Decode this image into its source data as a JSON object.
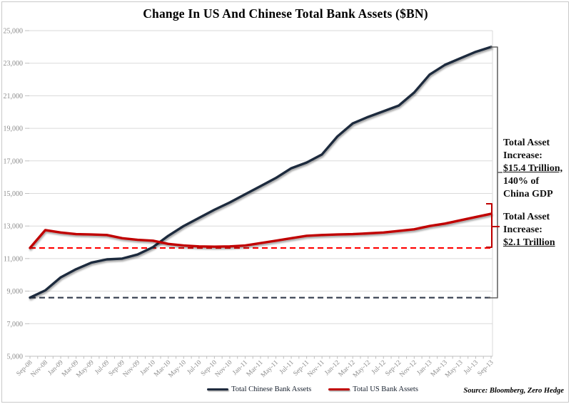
{
  "figure": {
    "source_note": "Source: Bloomberg, Zero Hedge"
  },
  "colors": {
    "gridline": "#dadada",
    "axis_tick": "#bfbfbf",
    "axis_label": "#8c8c8c",
    "title": "#000000",
    "chinese_line": "#1f2b3e",
    "us_line": "#c00000",
    "us_start_dashed": "#ff0000",
    "china_start_dashed": "#3d4656"
  },
  "chart_data": {
    "type": "line",
    "title": "Change In US And Chinese Total Bank Assets ($BN)",
    "xlabel": "",
    "ylabel": "",
    "ylim": [
      5000,
      25000
    ],
    "ytick_step": 2000,
    "ytick_labels": [
      "5,000",
      "7,000",
      "9,000",
      "11,000",
      "13,000",
      "15,000",
      "17,000",
      "19,000",
      "21,000",
      "23,000",
      "25,000"
    ],
    "grid": "horizontal",
    "legend_position": "bottom-center",
    "categories": [
      "Sep-08",
      "Nov-08",
      "Jan-09",
      "Mar-09",
      "May-09",
      "Jul-09",
      "Sep-09",
      "Nov-09",
      "Jan-10",
      "Mar-10",
      "May-10",
      "Jul-10",
      "Sep-10",
      "Nov-10",
      "Jan-11",
      "Mar-11",
      "May-11",
      "Jul-11",
      "Sep-11",
      "Nov-11",
      "Jan-12",
      "Mar-12",
      "May-12",
      "Jul-12",
      "Sep-12",
      "Nov-12",
      "Jan-13",
      "Mar-13",
      "May-13",
      "Jul-13",
      "Sep-13"
    ],
    "series": [
      {
        "name": "Total Chinese Bank Assets",
        "color": "#1f2b3e",
        "values": [
          8600,
          9050,
          9850,
          10350,
          10750,
          10950,
          11000,
          11250,
          11700,
          12400,
          13000,
          13500,
          14000,
          14450,
          14950,
          15450,
          15950,
          16550,
          16900,
          17400,
          18500,
          19300,
          19700,
          20050,
          20400,
          21200,
          22300,
          22900,
          23300,
          23700,
          24000
        ]
      },
      {
        "name": "Total US Bank Assets",
        "color": "#c00000",
        "values": [
          11650,
          12750,
          12600,
          12500,
          12480,
          12450,
          12250,
          12150,
          12100,
          11900,
          11800,
          11750,
          11730,
          11750,
          11800,
          11950,
          12100,
          12250,
          12400,
          12450,
          12480,
          12500,
          12550,
          12600,
          12700,
          12800,
          13000,
          13150,
          13350,
          13550,
          13750
        ]
      }
    ],
    "reference_lines": [
      {
        "label": "China Sep-08 starting level",
        "value": 8600,
        "color": "#3d4656",
        "style": "dashed"
      },
      {
        "label": "US Sep-08 starting level",
        "value": 11650,
        "color": "#ff0000",
        "style": "dashed"
      }
    ],
    "annotations": [
      {
        "lines": [
          "Total Asset",
          "Increase:",
          "$15.4 Trillion,",
          "140% of",
          "China GDP"
        ],
        "underlined_line_index": 2,
        "bracket_color": "#666666"
      },
      {
        "lines": [
          "Total Asset",
          "Increase:",
          "$2.1 Trillion"
        ],
        "underlined_line_index": 2,
        "bracket_color": "#c00000"
      }
    ]
  }
}
